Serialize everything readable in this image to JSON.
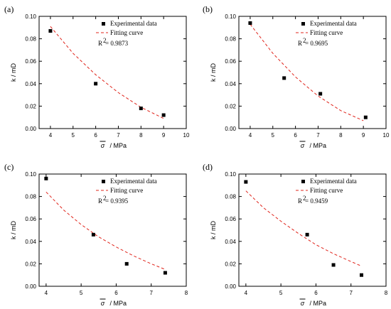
{
  "colors": {
    "fit": "#e0241b",
    "points": "#000000"
  },
  "chart_data": [
    {
      "type": "scatter",
      "panel_label": "(a)",
      "xlabel_symbol": "σ",
      "xlabel_unit": "/ MPa",
      "ylabel": "k / mD",
      "xlim": [
        3.5,
        10
      ],
      "ylim": [
        0,
        0.1
      ],
      "xticks": [
        4,
        5,
        6,
        7,
        8,
        9,
        10
      ],
      "yticks": [
        0.0,
        0.02,
        0.04,
        0.06,
        0.08,
        0.1
      ],
      "ytick_labels": [
        "0.00",
        "0.02",
        "0.04",
        "0.06",
        "0.08",
        "0.10"
      ],
      "legend_points": "Experimental data",
      "legend_fit": "Fitting curve",
      "r2_prefix": "R",
      "r2_value": " = 0.9873",
      "series": [
        {
          "name": "Experimental data",
          "points": [
            [
              4.0,
              0.087
            ],
            [
              6.0,
              0.04
            ],
            [
              8.0,
              0.018
            ],
            [
              9.0,
              0.012
            ]
          ]
        }
      ],
      "fit": {
        "name": "Fitting curve",
        "x": [
          4.0,
          5.0,
          6.0,
          7.0,
          8.0,
          9.0
        ],
        "y": [
          0.091,
          0.067,
          0.048,
          0.032,
          0.019,
          0.009
        ]
      }
    },
    {
      "type": "scatter",
      "panel_label": "(b)",
      "xlabel_symbol": "σ",
      "xlabel_unit": "/ MPa",
      "ylabel": "k / mD",
      "xlim": [
        3.5,
        10
      ],
      "ylim": [
        0,
        0.1
      ],
      "xticks": [
        4,
        5,
        6,
        7,
        8,
        9,
        10
      ],
      "yticks": [
        0.0,
        0.02,
        0.04,
        0.06,
        0.08,
        0.1
      ],
      "ytick_labels": [
        "0.00",
        "0.02",
        "0.04",
        "0.06",
        "0.08",
        "0.10"
      ],
      "legend_points": "Experimental data",
      "legend_fit": "Fitting curve",
      "r2_prefix": "R",
      "r2_value": " = 0.9695",
      "series": [
        {
          "name": "Experimental data",
          "points": [
            [
              4.0,
              0.094
            ],
            [
              5.5,
              0.045
            ],
            [
              7.1,
              0.031
            ],
            [
              9.1,
              0.01
            ]
          ]
        }
      ],
      "fit": {
        "name": "Fitting curve",
        "x": [
          4.0,
          5.0,
          6.0,
          7.0,
          8.0,
          9.0
        ],
        "y": [
          0.093,
          0.067,
          0.046,
          0.029,
          0.016,
          0.007
        ]
      }
    },
    {
      "type": "scatter",
      "panel_label": "(c)",
      "xlabel_symbol": "σ",
      "xlabel_unit": "/ MPa",
      "ylabel": "k / mD",
      "xlim": [
        3.8,
        8
      ],
      "ylim": [
        0,
        0.1
      ],
      "xticks": [
        4,
        5,
        6,
        7,
        8
      ],
      "yticks": [
        0.0,
        0.02,
        0.04,
        0.06,
        0.08,
        0.1
      ],
      "ytick_labels": [
        "0.00",
        "0.02",
        "0.04",
        "0.06",
        "0.08",
        "0.10"
      ],
      "legend_points": "Experimental data",
      "legend_fit": "Fitting curve",
      "r2_prefix": "R",
      "r2_value": " = 0.9395",
      "series": [
        {
          "name": "Experimental data",
          "points": [
            [
              4.0,
              0.096
            ],
            [
              5.35,
              0.046
            ],
            [
              6.3,
              0.02
            ],
            [
              7.4,
              0.012
            ]
          ]
        }
      ],
      "fit": {
        "name": "Fitting curve",
        "x": [
          4.0,
          4.5,
          5.0,
          5.5,
          6.0,
          6.5,
          7.0,
          7.4
        ],
        "y": [
          0.084,
          0.068,
          0.055,
          0.044,
          0.035,
          0.027,
          0.02,
          0.015
        ]
      }
    },
    {
      "type": "scatter",
      "panel_label": "(d)",
      "xlabel_symbol": "σ",
      "xlabel_unit": "/ MPa",
      "ylabel": "k / mD",
      "xlim": [
        3.8,
        8
      ],
      "ylim": [
        0,
        0.1
      ],
      "xticks": [
        4,
        5,
        6,
        7,
        8
      ],
      "yticks": [
        0.0,
        0.02,
        0.04,
        0.06,
        0.08,
        0.1
      ],
      "ytick_labels": [
        "0.00",
        "0.02",
        "0.04",
        "0.06",
        "0.08",
        "0.10"
      ],
      "legend_points": "Experimental data",
      "legend_fit": "Fitting curve",
      "r2_prefix": "R",
      "r2_value": " = 0.9459",
      "series": [
        {
          "name": "Experimental data",
          "points": [
            [
              4.0,
              0.093
            ],
            [
              5.75,
              0.046
            ],
            [
              6.5,
              0.019
            ],
            [
              7.3,
              0.01
            ]
          ]
        }
      ],
      "fit": {
        "name": "Fitting curve",
        "x": [
          4.0,
          4.5,
          5.0,
          5.5,
          6.0,
          6.5,
          7.0,
          7.3
        ],
        "y": [
          0.085,
          0.07,
          0.058,
          0.047,
          0.037,
          0.029,
          0.022,
          0.018
        ]
      }
    }
  ]
}
